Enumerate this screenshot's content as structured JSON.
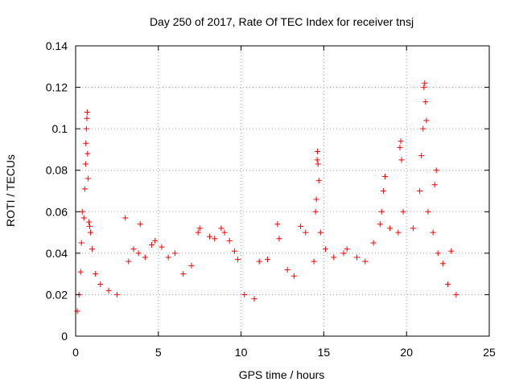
{
  "chart_data": {
    "type": "scatter",
    "title": "Day 250 of 2017, Rate Of TEC Index for receiver tnsj",
    "xlabel": "GPS time / hours",
    "ylabel": "ROTI / TECUs",
    "xlim": [
      0,
      25
    ],
    "ylim": [
      0,
      0.14
    ],
    "x_ticks": [
      "0",
      "5",
      "10",
      "15",
      "20",
      "25"
    ],
    "y_ticks": [
      "0",
      "0.02",
      "0.04",
      "0.06",
      "0.08",
      "0.1",
      "0.12",
      "0.14"
    ],
    "grid": true,
    "marker": "+",
    "color": "#ff0000",
    "series": [
      {
        "points": [
          [
            0.1,
            0.012
          ],
          [
            0.2,
            0.02
          ],
          [
            0.3,
            0.031
          ],
          [
            0.35,
            0.045
          ],
          [
            0.4,
            0.06
          ],
          [
            0.5,
            0.057
          ],
          [
            0.55,
            0.071
          ],
          [
            0.6,
            0.083
          ],
          [
            0.62,
            0.093
          ],
          [
            0.65,
            0.1
          ],
          [
            0.68,
            0.105
          ],
          [
            0.7,
            0.108
          ],
          [
            0.72,
            0.088
          ],
          [
            0.75,
            0.076
          ],
          [
            0.8,
            0.055
          ],
          [
            0.85,
            0.053
          ],
          [
            0.9,
            0.05
          ],
          [
            1.0,
            0.042
          ],
          [
            1.2,
            0.03
          ],
          [
            1.5,
            0.025
          ],
          [
            2.0,
            0.022
          ],
          [
            2.5,
            0.02
          ],
          [
            3.0,
            0.057
          ],
          [
            3.2,
            0.036
          ],
          [
            3.5,
            0.042
          ],
          [
            3.8,
            0.04
          ],
          [
            3.9,
            0.054
          ],
          [
            4.2,
            0.038
          ],
          [
            4.6,
            0.044
          ],
          [
            4.8,
            0.046
          ],
          [
            5.2,
            0.043
          ],
          [
            5.6,
            0.038
          ],
          [
            6.0,
            0.04
          ],
          [
            6.5,
            0.03
          ],
          [
            7.0,
            0.034
          ],
          [
            7.4,
            0.05
          ],
          [
            7.5,
            0.052
          ],
          [
            8.1,
            0.048
          ],
          [
            8.4,
            0.047
          ],
          [
            8.8,
            0.052
          ],
          [
            9.0,
            0.05
          ],
          [
            9.3,
            0.046
          ],
          [
            9.6,
            0.041
          ],
          [
            9.8,
            0.037
          ],
          [
            10.2,
            0.02
          ],
          [
            10.8,
            0.018
          ],
          [
            11.1,
            0.036
          ],
          [
            11.6,
            0.037
          ],
          [
            12.2,
            0.054
          ],
          [
            12.3,
            0.047
          ],
          [
            12.8,
            0.032
          ],
          [
            13.2,
            0.029
          ],
          [
            13.6,
            0.053
          ],
          [
            13.9,
            0.05
          ],
          [
            14.4,
            0.036
          ],
          [
            14.5,
            0.06
          ],
          [
            14.55,
            0.066
          ],
          [
            14.6,
            0.085
          ],
          [
            14.62,
            0.089
          ],
          [
            14.65,
            0.083
          ],
          [
            14.7,
            0.075
          ],
          [
            14.8,
            0.05
          ],
          [
            15.1,
            0.042
          ],
          [
            15.6,
            0.038
          ],
          [
            16.2,
            0.04
          ],
          [
            16.4,
            0.042
          ],
          [
            17.0,
            0.038
          ],
          [
            17.5,
            0.036
          ],
          [
            18.0,
            0.045
          ],
          [
            18.4,
            0.054
          ],
          [
            18.5,
            0.06
          ],
          [
            18.6,
            0.07
          ],
          [
            18.7,
            0.077
          ],
          [
            19.0,
            0.052
          ],
          [
            19.5,
            0.05
          ],
          [
            19.6,
            0.091
          ],
          [
            19.65,
            0.094
          ],
          [
            19.7,
            0.085
          ],
          [
            19.8,
            0.06
          ],
          [
            20.4,
            0.052
          ],
          [
            20.8,
            0.07
          ],
          [
            20.9,
            0.087
          ],
          [
            21.0,
            0.1
          ],
          [
            21.05,
            0.12
          ],
          [
            21.1,
            0.122
          ],
          [
            21.15,
            0.113
          ],
          [
            21.2,
            0.104
          ],
          [
            21.3,
            0.06
          ],
          [
            21.6,
            0.05
          ],
          [
            21.7,
            0.073
          ],
          [
            21.8,
            0.08
          ],
          [
            21.9,
            0.04
          ],
          [
            22.2,
            0.035
          ],
          [
            22.5,
            0.025
          ],
          [
            22.7,
            0.041
          ],
          [
            23.0,
            0.02
          ]
        ]
      }
    ]
  }
}
